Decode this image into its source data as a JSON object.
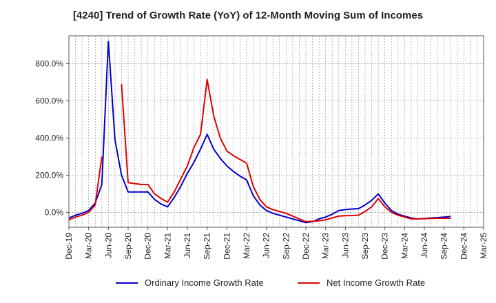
{
  "chart_data": {
    "type": "line",
    "title": "[4240]  Trend of Growth Rate (YoY) of 12-Month Moving Sum of Incomes",
    "xlabel": "",
    "ylabel": "",
    "x_ticks": [
      "Dec-19",
      "Mar-20",
      "Jun-20",
      "Sep-20",
      "Dec-20",
      "Mar-21",
      "Jun-21",
      "Sep-21",
      "Dec-21",
      "Mar-22",
      "Jun-22",
      "Sep-22",
      "Dec-22",
      "Mar-23",
      "Jun-23",
      "Sep-23",
      "Dec-23",
      "Mar-24",
      "Jun-24",
      "Sep-24",
      "Dec-24",
      "Mar-25"
    ],
    "y_ticks": [
      0,
      200,
      400,
      600,
      800
    ],
    "y_tick_labels": [
      "0.0%",
      "200.0%",
      "400.0%",
      "600.0%",
      "800.0%"
    ],
    "ylim": [
      -80,
      950
    ],
    "grid": true,
    "legend_position": "bottom",
    "series": [
      {
        "name": "Ordinary Income Growth Rate",
        "color": "#0000cc",
        "points": [
          [
            0,
            -30
          ],
          [
            1,
            -15
          ],
          [
            2,
            -5
          ],
          [
            3,
            10
          ],
          [
            4,
            50
          ],
          [
            5,
            150
          ],
          [
            6,
            920
          ],
          [
            7,
            390
          ],
          [
            8,
            200
          ],
          [
            9,
            110
          ],
          [
            10,
            110
          ],
          [
            11,
            110
          ],
          [
            12,
            110
          ],
          [
            13,
            70
          ],
          [
            14,
            45
          ],
          [
            15,
            30
          ],
          [
            16,
            80
          ],
          [
            17,
            140
          ],
          [
            18,
            210
          ],
          [
            19,
            270
          ],
          [
            20,
            340
          ],
          [
            21,
            420
          ],
          [
            22,
            340
          ],
          [
            23,
            290
          ],
          [
            24,
            250
          ],
          [
            25,
            220
          ],
          [
            26,
            195
          ],
          [
            27,
            175
          ],
          [
            28,
            90
          ],
          [
            29,
            40
          ],
          [
            30,
            10
          ],
          [
            31,
            -5
          ],
          [
            32,
            -15
          ],
          [
            33,
            -25
          ],
          [
            34,
            -35
          ],
          [
            35,
            -45
          ],
          [
            36,
            -55
          ],
          [
            37,
            -50
          ],
          [
            38,
            -35
          ],
          [
            39,
            -25
          ],
          [
            40,
            -10
          ],
          [
            41,
            10
          ],
          [
            42,
            15
          ],
          [
            43,
            18
          ],
          [
            44,
            20
          ],
          [
            45,
            40
          ],
          [
            46,
            65
          ],
          [
            47,
            100
          ],
          [
            48,
            50
          ],
          [
            49,
            10
          ],
          [
            50,
            -10
          ],
          [
            51,
            -20
          ],
          [
            52,
            -30
          ],
          [
            53,
            -35
          ],
          [
            54,
            -33
          ],
          [
            55,
            -30
          ],
          [
            56,
            -28
          ],
          [
            57,
            -25
          ],
          [
            58,
            -22
          ]
        ]
      },
      {
        "name": "Net Income Growth Rate",
        "color": "#dd0000",
        "points": [
          [
            0,
            -40
          ],
          [
            1,
            -25
          ],
          [
            2,
            -15
          ],
          [
            3,
            0
          ],
          [
            4,
            40
          ],
          [
            5,
            300
          ],
          null,
          [
            8,
            690
          ],
          [
            9,
            160
          ],
          [
            10,
            155
          ],
          [
            11,
            150
          ],
          [
            12,
            150
          ],
          [
            13,
            100
          ],
          [
            14,
            75
          ],
          [
            15,
            55
          ],
          [
            16,
            110
          ],
          [
            17,
            180
          ],
          [
            18,
            250
          ],
          [
            19,
            350
          ],
          [
            20,
            420
          ],
          [
            21,
            715
          ],
          [
            22,
            520
          ],
          [
            23,
            400
          ],
          [
            24,
            330
          ],
          [
            25,
            305
          ],
          [
            26,
            285
          ],
          [
            27,
            265
          ],
          [
            28,
            140
          ],
          [
            29,
            70
          ],
          [
            30,
            30
          ],
          [
            31,
            15
          ],
          [
            32,
            5
          ],
          [
            33,
            -5
          ],
          [
            34,
            -20
          ],
          [
            35,
            -35
          ],
          [
            36,
            -50
          ],
          [
            37,
            -48
          ],
          [
            38,
            -45
          ],
          [
            39,
            -40
          ],
          [
            40,
            -30
          ],
          [
            41,
            -20
          ],
          [
            42,
            -18
          ],
          [
            43,
            -17
          ],
          [
            44,
            -15
          ],
          [
            45,
            5
          ],
          [
            46,
            30
          ],
          [
            47,
            75
          ],
          [
            48,
            30
          ],
          [
            49,
            0
          ],
          [
            50,
            -15
          ],
          [
            51,
            -25
          ],
          [
            52,
            -35
          ],
          [
            53,
            -35
          ],
          [
            54,
            -34
          ],
          [
            55,
            -33
          ],
          [
            56,
            -32
          ],
          [
            57,
            -32
          ],
          [
            58,
            -32
          ]
        ]
      }
    ]
  }
}
